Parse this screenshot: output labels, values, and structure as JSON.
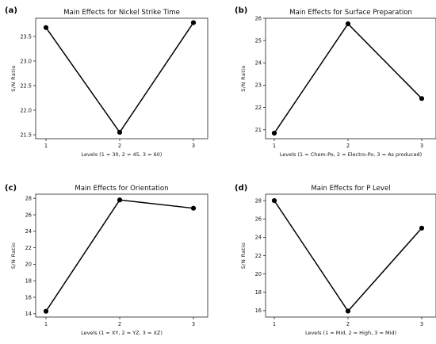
{
  "chart_data": [
    {
      "type": "line",
      "panel_label": "(a)",
      "title": "Main Effects for Nickel Strike Time",
      "xlabel": "Levels (1 = 30, 2 = 45, 3 = 60)",
      "ylabel": "S/N Ratio",
      "x": [
        1,
        2,
        3
      ],
      "values": [
        23.68,
        21.55,
        23.78
      ],
      "xticks": [
        "1",
        "2",
        "3"
      ],
      "yticks": [
        21.5,
        22.0,
        22.5,
        23.0,
        23.5
      ],
      "ytick_labels": [
        "21.5",
        "22.0",
        "22.5",
        "23.0",
        "23.5"
      ],
      "ylim": [
        21.42,
        23.87
      ],
      "grid": false
    },
    {
      "type": "line",
      "panel_label": "(b)",
      "title": "Main Effects for Surface Preparation",
      "xlabel": "Levels (1 = Chem-Po, 2 = Electro-Po, 3 = As produced)",
      "ylabel": "S/N Ratio",
      "x": [
        1,
        2,
        3
      ],
      "values": [
        20.85,
        25.75,
        22.4
      ],
      "xticks": [
        "1",
        "2",
        "3"
      ],
      "yticks": [
        21,
        22,
        23,
        24,
        25,
        26
      ],
      "ytick_labels": [
        "21",
        "22",
        "23",
        "24",
        "25",
        "26"
      ],
      "ylim": [
        20.6,
        26.0
      ],
      "grid": false
    },
    {
      "type": "line",
      "panel_label": "(c)",
      "title": "Main Effects for Orientation",
      "xlabel": "Levels (1 = XY, 2 = YZ, 3 = XZ)",
      "ylabel": "S/N Ratio",
      "x": [
        1,
        2,
        3
      ],
      "values": [
        14.3,
        27.8,
        26.8
      ],
      "xticks": [
        "1",
        "2",
        "3"
      ],
      "yticks": [
        14,
        16,
        18,
        20,
        22,
        24,
        26,
        28
      ],
      "ytick_labels": [
        "14",
        "16",
        "18",
        "20",
        "22",
        "24",
        "26",
        "28"
      ],
      "ylim": [
        13.6,
        28.5
      ],
      "grid": false
    },
    {
      "type": "line",
      "panel_label": "(d)",
      "title": "Main Effects for P Level",
      "xlabel": "Levels (1 = Mid, 2 = High, 3 = Mid)",
      "ylabel": "S/N Ratio",
      "x": [
        1,
        2,
        3
      ],
      "values": [
        28.0,
        15.95,
        25.0
      ],
      "xticks": [
        "1",
        "2",
        "3"
      ],
      "yticks": [
        16,
        18,
        20,
        22,
        24,
        26,
        28
      ],
      "ytick_labels": [
        "16",
        "18",
        "20",
        "22",
        "24",
        "26",
        "28"
      ],
      "ylim": [
        15.3,
        28.7
      ],
      "grid": false
    }
  ]
}
